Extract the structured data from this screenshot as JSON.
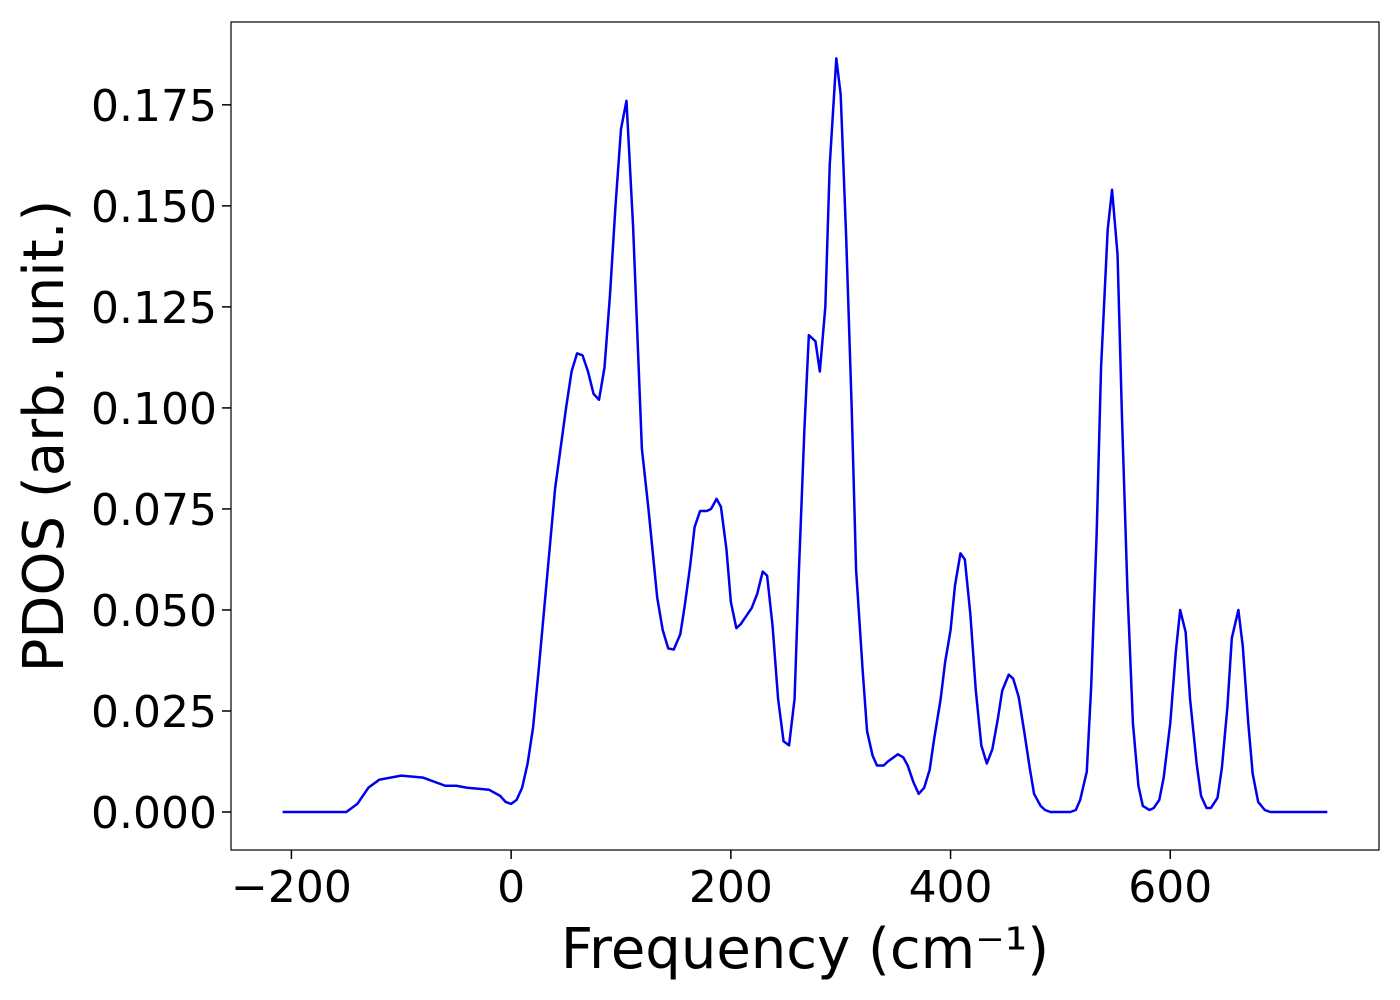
{
  "chart_data": {
    "type": "line",
    "xlabel": "Frequency (cm⁻¹)",
    "ylabel": "PDOS (arb. unit.)",
    "color": "#0000ee",
    "x": [
      -208,
      -150,
      -140,
      -130,
      -120,
      -100,
      -80,
      -60,
      -50,
      -40,
      -20,
      -10,
      -5,
      0,
      5,
      10,
      15,
      20,
      25,
      30,
      35,
      40,
      45,
      50,
      55,
      60,
      65,
      70,
      75,
      80,
      85,
      90,
      95,
      100,
      105,
      111,
      119,
      125,
      133,
      138,
      143,
      148,
      154,
      158,
      163,
      167,
      172,
      178,
      182,
      187,
      191,
      196,
      200,
      205,
      209,
      214,
      219,
      224,
      229,
      233,
      238,
      243,
      248,
      253,
      258,
      262,
      267,
      271,
      277,
      281,
      286,
      290,
      296,
      300,
      305,
      310,
      314,
      320,
      324,
      329,
      333,
      339,
      343,
      348,
      352,
      357,
      361,
      366,
      371,
      376,
      381,
      385,
      391,
      395,
      400,
      404,
      409,
      413,
      418,
      423,
      428,
      433,
      438,
      443,
      447,
      453,
      457,
      462,
      467,
      472,
      476,
      482,
      486,
      491,
      509,
      514,
      518,
      524,
      528,
      533,
      537,
      543,
      547,
      552,
      556,
      561,
      566,
      571,
      575,
      581,
      585,
      590,
      594,
      600,
      605,
      609,
      614,
      618,
      624,
      628,
      633,
      637,
      643,
      647,
      652,
      656,
      662,
      666,
      671,
      675,
      680,
      686,
      691,
      743
    ],
    "values": [
      0,
      0,
      0.002,
      0.006,
      0.008,
      0.009,
      0.0085,
      0.0065,
      0.0065,
      0.006,
      0.0055,
      0.004,
      0.0025,
      0.002,
      0.003,
      0.006,
      0.012,
      0.021,
      0.035,
      0.05,
      0.065,
      0.08,
      0.09,
      0.1,
      0.109,
      0.1135,
      0.113,
      0.109,
      0.1035,
      0.102,
      0.11,
      0.128,
      0.15,
      0.169,
      0.176,
      0.145,
      0.09,
      0.075,
      0.053,
      0.045,
      0.0405,
      0.0402,
      0.044,
      0.051,
      0.061,
      0.0705,
      0.0745,
      0.0745,
      0.075,
      0.0775,
      0.0755,
      0.065,
      0.052,
      0.0455,
      0.0465,
      0.0485,
      0.0505,
      0.054,
      0.0595,
      0.0585,
      0.046,
      0.028,
      0.0175,
      0.0165,
      0.028,
      0.06,
      0.095,
      0.118,
      0.1165,
      0.109,
      0.125,
      0.16,
      0.1865,
      0.1775,
      0.142,
      0.1,
      0.06,
      0.035,
      0.02,
      0.014,
      0.0115,
      0.0115,
      0.0125,
      0.0135,
      0.0143,
      0.0135,
      0.0115,
      0.0075,
      0.0045,
      0.006,
      0.0105,
      0.018,
      0.028,
      0.037,
      0.045,
      0.056,
      0.064,
      0.0625,
      0.049,
      0.03,
      0.0165,
      0.012,
      0.0155,
      0.023,
      0.03,
      0.034,
      0.033,
      0.0285,
      0.02,
      0.011,
      0.0045,
      0.0015,
      0.0005,
      0,
      0,
      0.0005,
      0.003,
      0.01,
      0.031,
      0.069,
      0.11,
      0.144,
      0.154,
      0.138,
      0.098,
      0.055,
      0.022,
      0.0065,
      0.0015,
      0.0005,
      0.001,
      0.003,
      0.0085,
      0.022,
      0.0395,
      0.05,
      0.0445,
      0.028,
      0.012,
      0.004,
      0.001,
      0.001,
      0.0035,
      0.011,
      0.026,
      0.043,
      0.05,
      0.041,
      0.022,
      0.0095,
      0.0025,
      0.0005,
      0,
      0
    ],
    "xlim": [
      -255,
      790
    ],
    "ylim": [
      -0.0094,
      0.1955
    ],
    "xticks": [
      {
        "value": -200,
        "label": "−200"
      },
      0,
      200,
      400,
      600
    ],
    "yticks": [
      {
        "value": 0,
        "label": "0.000"
      },
      0.025,
      {
        "value": 0.05,
        "label": "0.050"
      },
      0.075,
      {
        "value": 0.1,
        "label": "0.100"
      },
      0.125,
      {
        "value": 0.15,
        "label": "0.150"
      },
      0.175
    ]
  }
}
